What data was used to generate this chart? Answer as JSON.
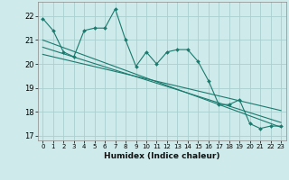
{
  "xlabel": "Humidex (Indice chaleur)",
  "bg_color": "#ceeaea",
  "grid_color": "#aacfcf",
  "line_color": "#1a7a6e",
  "xlim": [
    -0.5,
    23.5
  ],
  "ylim": [
    16.8,
    22.6
  ],
  "yticks": [
    17,
    18,
    19,
    20,
    21,
    22
  ],
  "xticks": [
    0,
    1,
    2,
    3,
    4,
    5,
    6,
    7,
    8,
    9,
    10,
    11,
    12,
    13,
    14,
    15,
    16,
    17,
    18,
    19,
    20,
    21,
    22,
    23
  ],
  "main_x": [
    0,
    1,
    2,
    3,
    4,
    5,
    6,
    7,
    8,
    9,
    10,
    11,
    12,
    13,
    14,
    15,
    16,
    17,
    18,
    19,
    20,
    21,
    22,
    23
  ],
  "main_y": [
    21.9,
    21.4,
    20.5,
    20.3,
    21.4,
    21.5,
    21.5,
    22.3,
    21.0,
    19.9,
    20.5,
    20.0,
    20.5,
    20.6,
    20.6,
    20.1,
    19.3,
    18.3,
    18.3,
    18.5,
    17.5,
    17.3,
    17.4,
    17.4
  ],
  "line1_x": [
    0,
    23
  ],
  "line1_y": [
    21.0,
    17.35
  ],
  "line2_x": [
    0,
    23
  ],
  "line2_y": [
    20.7,
    17.55
  ],
  "line3_x": [
    0,
    23
  ],
  "line3_y": [
    20.4,
    18.05
  ]
}
